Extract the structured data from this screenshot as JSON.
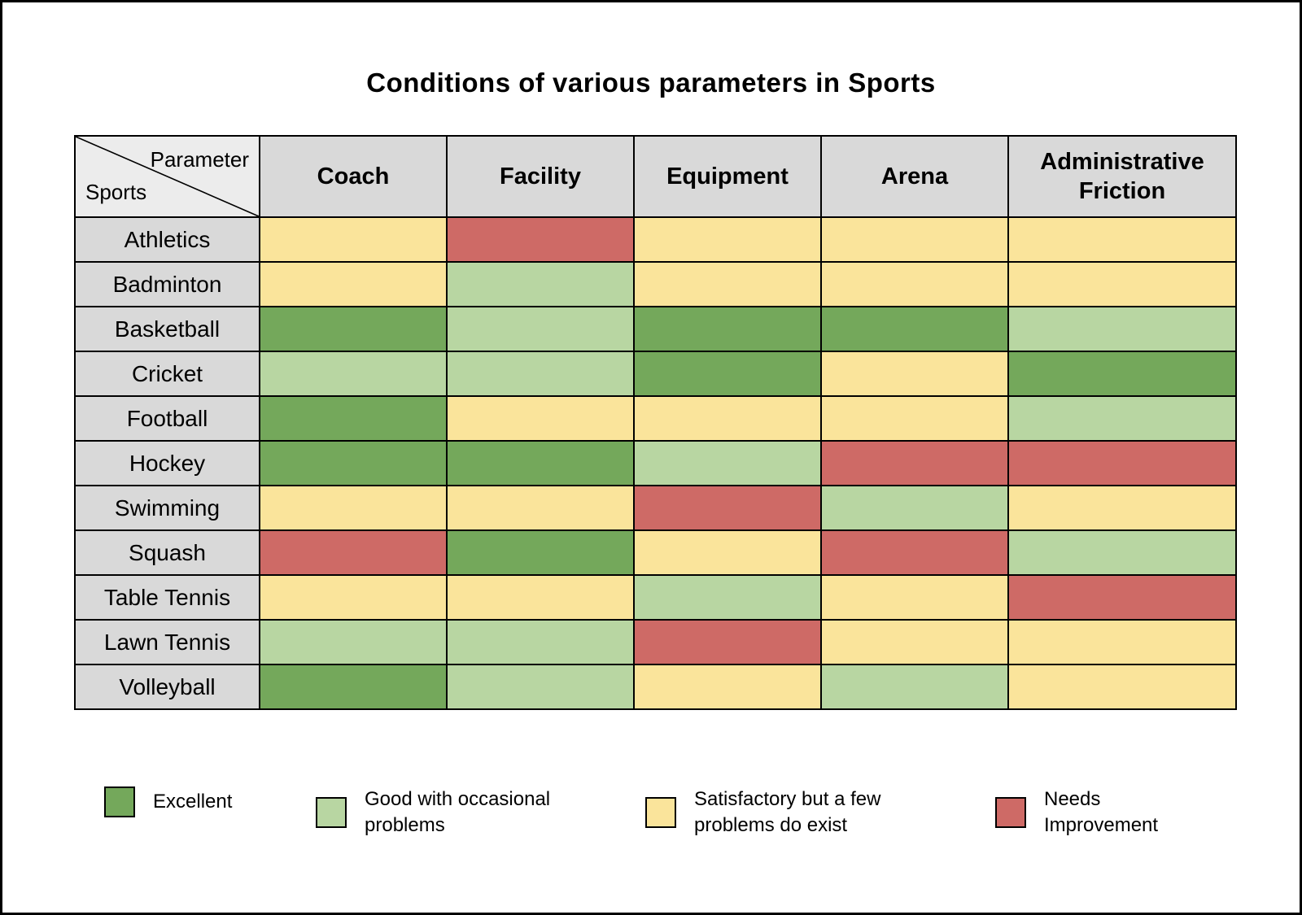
{
  "title": "Conditions of various parameters in Sports",
  "corner": {
    "top_right": "Parameter",
    "bottom_left": "Sports"
  },
  "chart_data": {
    "type": "heatmap",
    "title": "Conditions of various parameters in Sports",
    "columns": [
      "Coach",
      "Facility",
      "Equipment",
      "Arena",
      "Administrative Friction"
    ],
    "rows": [
      "Athletics",
      "Badminton",
      "Basketball",
      "Cricket",
      "Football",
      "Hockey",
      "Swimming",
      "Squash",
      "Table Tennis",
      "Lawn Tennis",
      "Volleyball"
    ],
    "values": [
      [
        "satisfactory",
        "needs_improvement",
        "satisfactory",
        "satisfactory",
        "satisfactory"
      ],
      [
        "satisfactory",
        "good",
        "satisfactory",
        "satisfactory",
        "satisfactory"
      ],
      [
        "excellent",
        "good",
        "excellent",
        "excellent",
        "good"
      ],
      [
        "good",
        "good",
        "excellent",
        "satisfactory",
        "excellent"
      ],
      [
        "excellent",
        "satisfactory",
        "satisfactory",
        "satisfactory",
        "good"
      ],
      [
        "excellent",
        "excellent",
        "good",
        "needs_improvement",
        "needs_improvement"
      ],
      [
        "satisfactory",
        "satisfactory",
        "needs_improvement",
        "good",
        "satisfactory"
      ],
      [
        "needs_improvement",
        "excellent",
        "satisfactory",
        "needs_improvement",
        "good"
      ],
      [
        "satisfactory",
        "satisfactory",
        "good",
        "satisfactory",
        "needs_improvement"
      ],
      [
        "good",
        "good",
        "needs_improvement",
        "satisfactory",
        "satisfactory"
      ],
      [
        "excellent",
        "good",
        "satisfactory",
        "good",
        "satisfactory"
      ]
    ],
    "palette": {
      "excellent": "#74A85B",
      "good": "#B8D6A2",
      "satisfactory": "#FAE49B",
      "needs_improvement": "#CE6A66"
    },
    "legend": [
      {
        "key": "excellent",
        "label": "Excellent",
        "color": "#74A85B"
      },
      {
        "key": "good",
        "label": "Good with occasional problems",
        "color": "#B8D6A2"
      },
      {
        "key": "satisfactory",
        "label": "Satisfactory but a few problems do exist",
        "color": "#FAE49B"
      },
      {
        "key": "needs_improvement",
        "label": "Needs Improvement",
        "color": "#CE6A66"
      }
    ],
    "legend_position": "bottom",
    "grid": true
  }
}
